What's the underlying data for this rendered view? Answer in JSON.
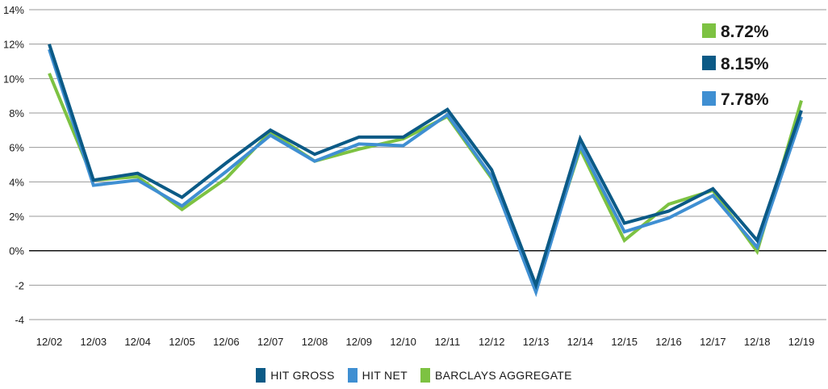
{
  "chart_data": {
    "type": "line",
    "categories": [
      "12/02",
      "12/03",
      "12/04",
      "12/05",
      "12/06",
      "12/07",
      "12/08",
      "12/09",
      "12/10",
      "12/11",
      "12/12",
      "12/13",
      "12/14",
      "12/15",
      "12/16",
      "12/17",
      "12/18",
      "12/19"
    ],
    "y_ticks": [
      "14%",
      "12%",
      "10%",
      "8%",
      "6%",
      "4%",
      "2%",
      "0%",
      "-2",
      "-4"
    ],
    "ylim": [
      -4,
      14
    ],
    "grid": true,
    "legend_position": "bottom",
    "series": [
      {
        "name": "HIT GROSS",
        "color": "#0b5a86",
        "values": [
          12.0,
          4.1,
          4.5,
          3.1,
          5.1,
          7.0,
          5.6,
          6.6,
          6.6,
          8.2,
          4.7,
          -2.0,
          6.5,
          1.6,
          2.3,
          3.6,
          0.6,
          8.15
        ]
      },
      {
        "name": "HIT NET",
        "color": "#3f8fd2",
        "values": [
          11.7,
          3.8,
          4.1,
          2.6,
          4.6,
          6.7,
          5.2,
          6.2,
          6.1,
          7.9,
          4.3,
          -2.4,
          6.1,
          1.1,
          1.9,
          3.2,
          0.2,
          7.78
        ]
      },
      {
        "name": "BARCLAYS AGGREGATE",
        "color": "#7dc242",
        "values": [
          10.3,
          4.1,
          4.3,
          2.4,
          4.2,
          6.9,
          5.2,
          5.9,
          6.5,
          7.8,
          4.2,
          -2.0,
          5.9,
          0.6,
          2.7,
          3.5,
          -0.05,
          8.72
        ]
      }
    ],
    "callouts": [
      {
        "label": "8.72%",
        "color": "#7dc242"
      },
      {
        "label": "8.15%",
        "color": "#0b5a86"
      },
      {
        "label": "7.78%",
        "color": "#3f8fd2"
      }
    ]
  }
}
